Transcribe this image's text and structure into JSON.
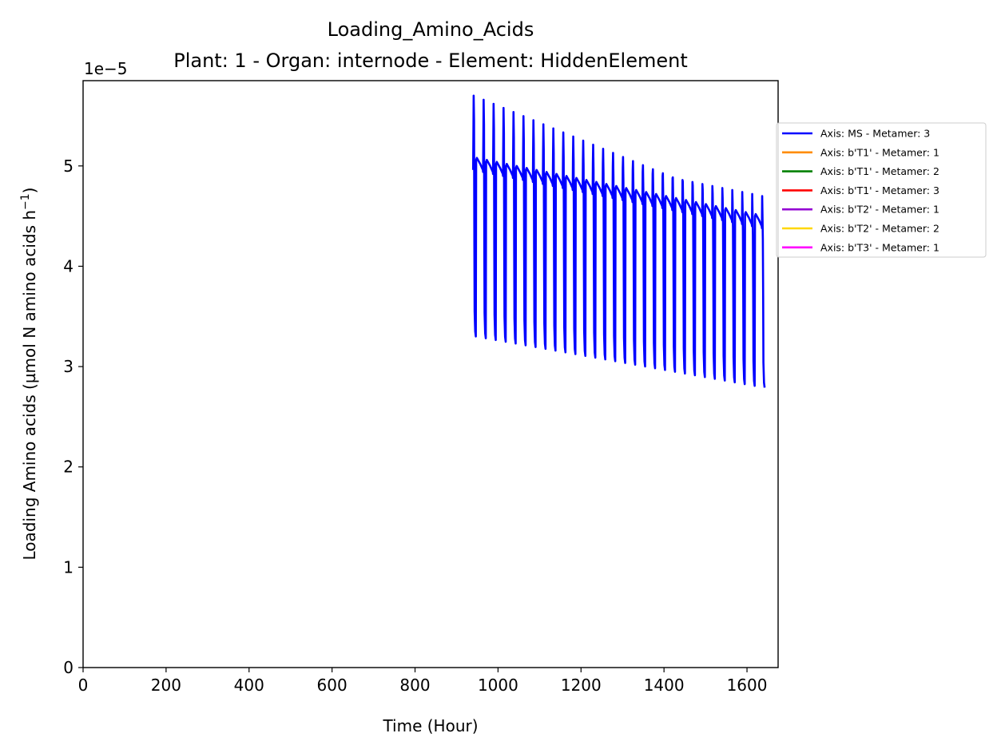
{
  "chart_data": {
    "type": "line",
    "title": "Loading_Amino_Acids",
    "subtitle": "Plant: 1 - Organ: internode - Element: HiddenElement",
    "xlabel": "Time (Hour)",
    "ylabel": "Loading Amino acids (µmol N amino acids h",
    "ylabel_superscript": "−1",
    "ylabel_suffix": ")",
    "y_offset_label": "1e−5",
    "xlim": [
      0,
      1675
    ],
    "ylim": [
      0,
      5.85
    ],
    "x_ticks": [
      {
        "value": 0,
        "label": "0"
      },
      {
        "value": 200,
        "label": "200"
      },
      {
        "value": 400,
        "label": "400"
      },
      {
        "value": 600,
        "label": "600"
      },
      {
        "value": 800,
        "label": "800"
      },
      {
        "value": 1000,
        "label": "1000"
      },
      {
        "value": 1200,
        "label": "1200"
      },
      {
        "value": 1400,
        "label": "1400"
      },
      {
        "value": 1600,
        "label": "1600"
      }
    ],
    "y_ticks": [
      {
        "value": 0,
        "label": "0"
      },
      {
        "value": 1,
        "label": "1"
      },
      {
        "value": 2,
        "label": "2"
      },
      {
        "value": 3,
        "label": "3"
      },
      {
        "value": 4,
        "label": "4"
      },
      {
        "value": 5,
        "label": "5"
      }
    ],
    "grid": false,
    "legend_position": "outside-right-top",
    "series": [
      {
        "name": "Axis: MS - Metamer: 3",
        "color": "#0000ff",
        "oscillation": {
          "x_start": 940,
          "x_end": 1643,
          "period_hours": 24,
          "peak_start": 5.7,
          "peak_end": 4.52,
          "trough_start": 3.3,
          "trough_end": 2.79,
          "plateau_start": 5.08,
          "plateau_end": 4.5
        }
      },
      {
        "name": "Axis: b'T1' - Metamer: 1",
        "color": "#ff8c00"
      },
      {
        "name": "Axis: b'T1' - Metamer: 2",
        "color": "#008000"
      },
      {
        "name": "Axis: b'T1' - Metamer: 3",
        "color": "#ff0000"
      },
      {
        "name": "Axis: b'T2' - Metamer: 1",
        "color": "#9400d3"
      },
      {
        "name": "Axis: b'T2' - Metamer: 2",
        "color": "#ffd700"
      },
      {
        "name": "Axis: b'T3' - Metamer: 1",
        "color": "#ff00ff"
      }
    ]
  }
}
